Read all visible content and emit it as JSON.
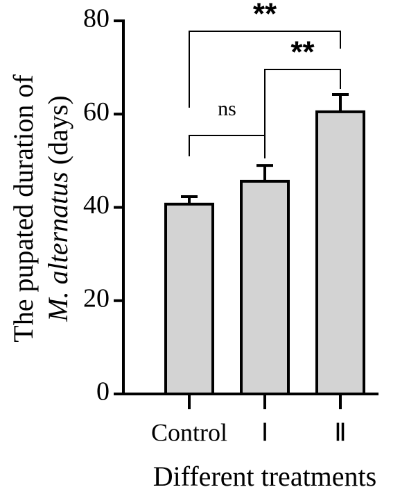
{
  "chart_data": {
    "type": "bar",
    "ylabel_line1": "The pupated duration of",
    "ylabel_species": "M. alternatus",
    "ylabel_unit": "(days)",
    "xlabel": "Different treatments",
    "categories": [
      "Control",
      "Ⅰ",
      "Ⅱ"
    ],
    "values": [
      40.7,
      45.6,
      60.5
    ],
    "errors": [
      1.6,
      3.4,
      3.7
    ],
    "color": "#d3d3d3",
    "ylim": [
      0,
      80
    ],
    "yticks": [
      0,
      20,
      40,
      60,
      80
    ],
    "annotations": [
      {
        "text": "ns",
        "categories": [
          "Control",
          "Ⅰ"
        ]
      },
      {
        "text": "**",
        "categories": [
          "Ⅰ",
          "Ⅱ"
        ]
      },
      {
        "text": "**",
        "categories": [
          "Control",
          "Ⅱ"
        ]
      }
    ]
  }
}
